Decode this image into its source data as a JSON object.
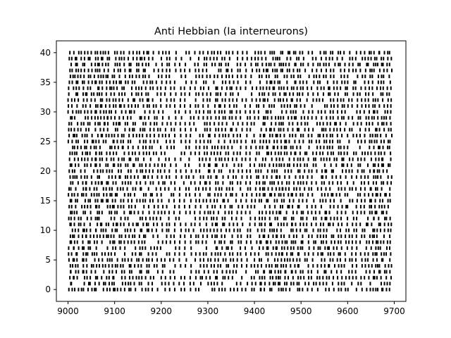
{
  "chart_data": {
    "type": "raster",
    "title": "Anti Hebbian (Ia interneurons)",
    "xlabel": "",
    "ylabel": "",
    "xlim": [
      9000,
      9700
    ],
    "ylim": [
      0,
      40
    ],
    "x_ticks": [
      9000,
      9100,
      9200,
      9300,
      9400,
      9500,
      9600,
      9700
    ],
    "y_ticks": [
      0,
      5,
      10,
      15,
      20,
      25,
      30,
      35,
      40
    ],
    "grid": false,
    "legend": "none",
    "colors": {
      "spikes": "#000000",
      "axes": "#000000",
      "background": "#ffffff"
    },
    "population_burst_times_ms": [
      9003,
      9009,
      9015,
      9021,
      9030,
      9036,
      9042,
      9049,
      9057,
      9063,
      9069,
      9075,
      9082,
      9088,
      9095,
      9101,
      9108,
      9114,
      9121,
      9130,
      9137,
      9145,
      9153,
      9160,
      9167,
      9175,
      9183,
      9192,
      9201,
      9210,
      9219,
      9229,
      9241,
      9251,
      9262,
      9272,
      9282,
      9291,
      9299,
      9307,
      9315,
      9322,
      9330,
      9338,
      9346,
      9354,
      9363,
      9372,
      9383,
      9393,
      9402,
      9410,
      9417,
      9424,
      9431,
      9438,
      9445,
      9451,
      9457,
      9463,
      9470,
      9477,
      9484,
      9491,
      9498,
      9506,
      9515,
      9525,
      9534,
      9542,
      9549,
      9556,
      9563,
      9570,
      9578,
      9586,
      9594,
      9602,
      9611,
      9620,
      9629,
      9638,
      9646,
      9653,
      9659,
      9665,
      9671,
      9678,
      9685,
      9692
    ],
    "neuron_count": 41,
    "spike_jitter_ms": 3,
    "spike_tick_height_neurons": 0.6
  }
}
